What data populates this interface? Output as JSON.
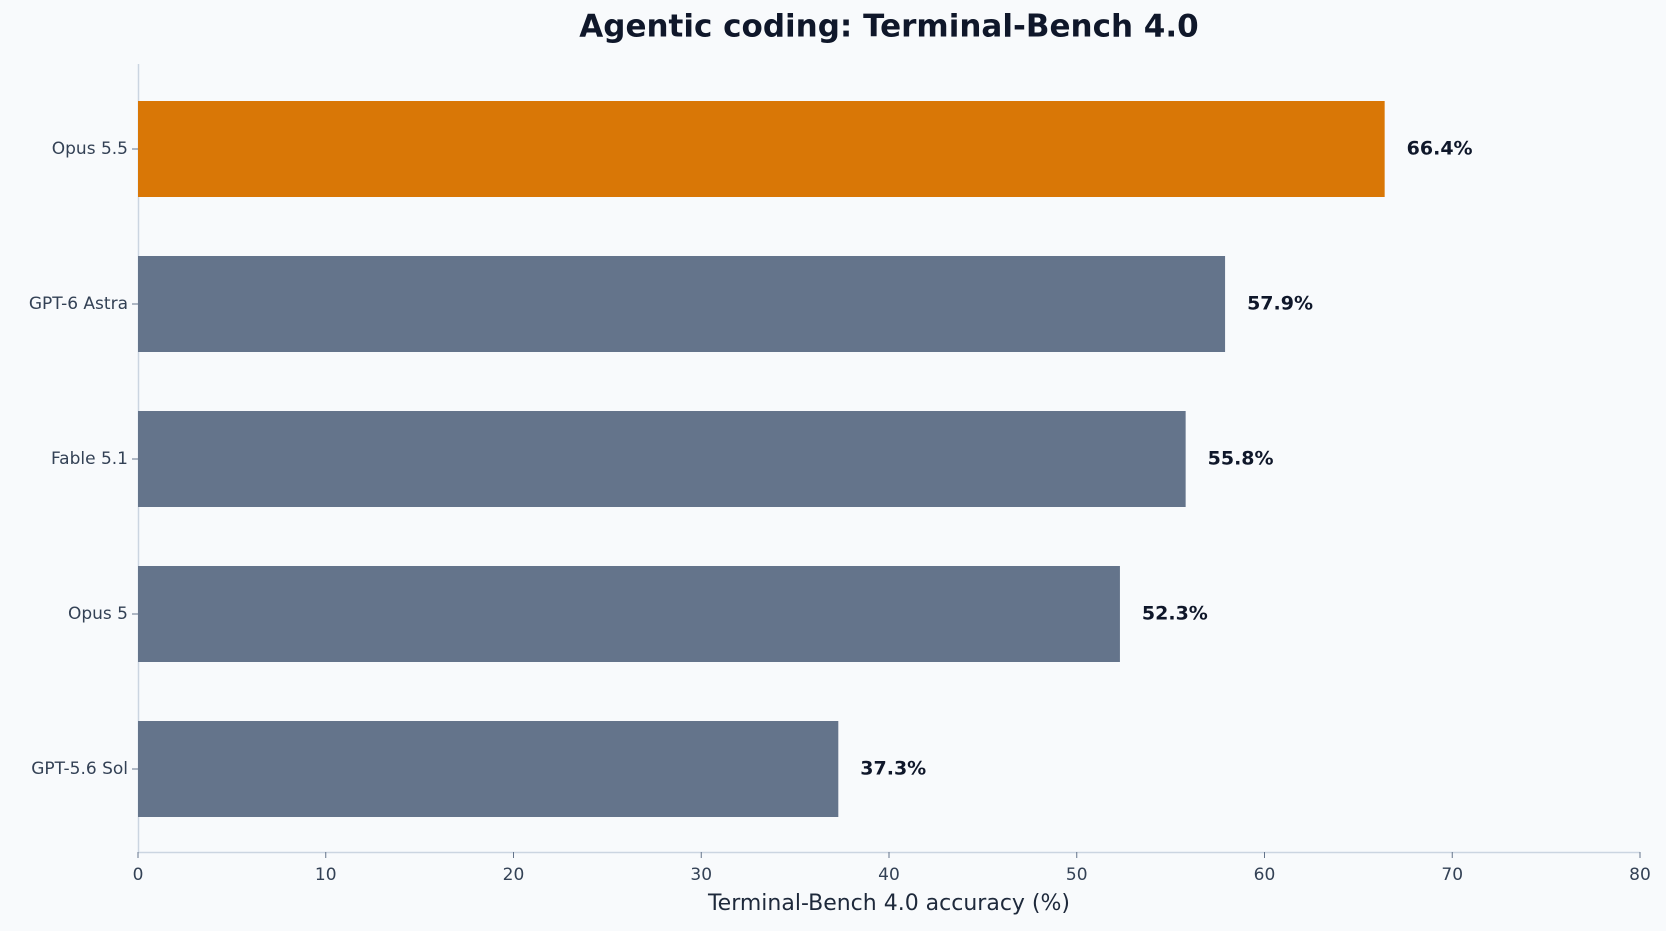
{
  "chart_data": {
    "type": "barh",
    "title": "Agentic coding: Terminal-Bench 4.0",
    "xlabel": "Terminal-Bench 4.0 accuracy (%)",
    "categories": [
      "Opus 5.5",
      "GPT-6 Astra",
      "Fable 5.1",
      "Opus 5",
      "GPT-5.6 Sol"
    ],
    "values": [
      66.4,
      57.9,
      55.8,
      52.3,
      37.3
    ],
    "value_labels": [
      "66.4%",
      "57.9%",
      "55.8%",
      "52.3%",
      "37.3%"
    ],
    "colors": [
      "#d97706",
      "#64748b",
      "#64748b",
      "#64748b",
      "#64748b"
    ],
    "xlim": [
      0,
      80
    ],
    "xticks": [
      0,
      10,
      20,
      30,
      40,
      50,
      60,
      70,
      80
    ],
    "grid": false
  }
}
